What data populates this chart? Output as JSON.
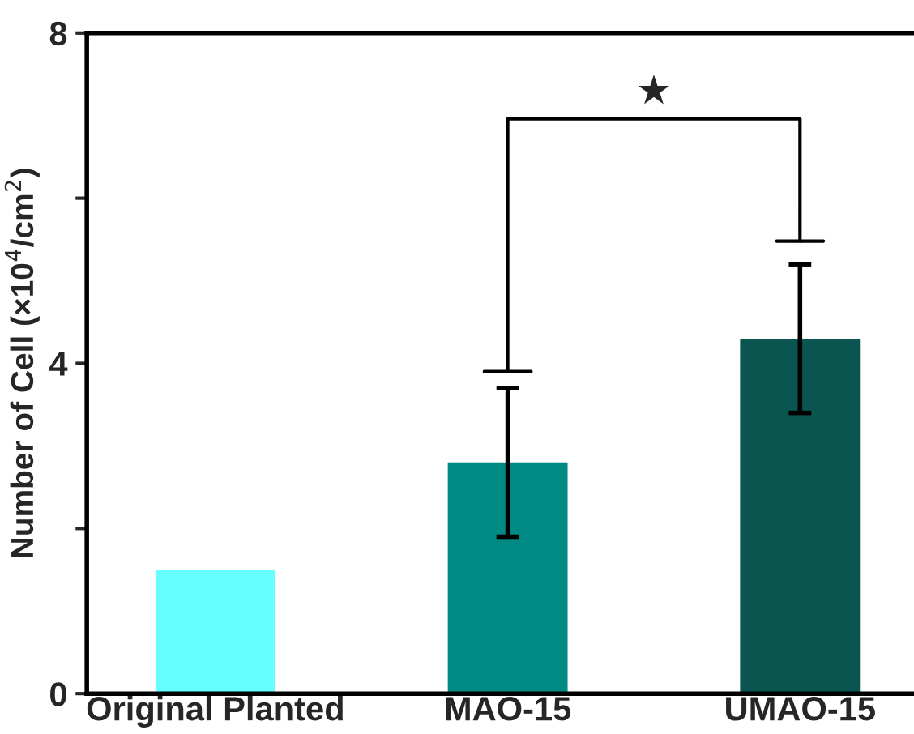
{
  "chart_data": {
    "type": "bar",
    "ylabel": "Number of Cell (×10$^{4}$/cm$^{2}$)",
    "categories": [
      "Original Planted",
      "MAO-15",
      "UMAO-15"
    ],
    "values": [
      1.5,
      2.8,
      4.3
    ],
    "colors": [
      "#66ffff",
      "#008a84",
      "#0a5550"
    ],
    "errors": [
      null,
      [
        1.9,
        3.7
      ],
      [
        3.4,
        5.2
      ]
    ],
    "ylim": [
      0,
      8
    ],
    "yticks": [
      0,
      {
        "value": 2,
        "label": null
      },
      4,
      {
        "value": 6,
        "label": null
      },
      8
    ],
    "annotations": [
      "★"
    ],
    "grid": false
  }
}
